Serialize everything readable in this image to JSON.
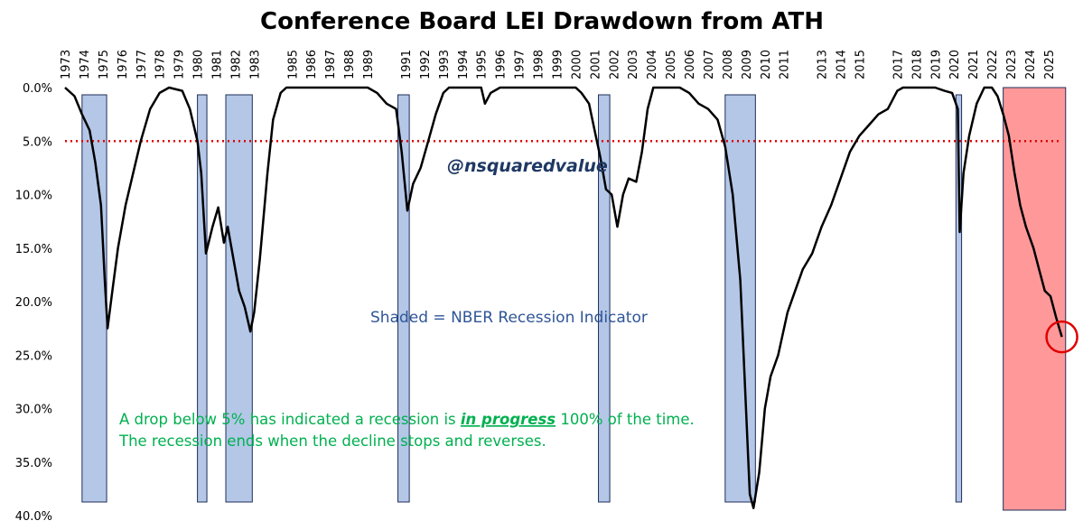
{
  "chart_data": {
    "type": "line",
    "title": "Conference Board LEI Drawdown from ATH",
    "y_inverted": true,
    "xlim": [
      1973,
      2026.15
    ],
    "xticks": [
      1973,
      1974,
      1975,
      1976,
      1977,
      1978,
      1979,
      1980,
      1981,
      1982,
      1983,
      1985,
      1986,
      1987,
      1988,
      1989,
      1991,
      1992,
      1993,
      1994,
      1995,
      1996,
      1997,
      1998,
      1999,
      2000,
      2001,
      2002,
      2003,
      2004,
      2005,
      2006,
      2007,
      2008,
      2009,
      2010,
      2011,
      2013,
      2014,
      2015,
      2017,
      2018,
      2019,
      2020,
      2021,
      2022,
      2023,
      2024,
      2025
    ],
    "ylim": [
      0,
      40
    ],
    "yticks": [
      {
        "value": 0,
        "label": "0.0%"
      },
      {
        "value": 5,
        "label": "5.0%"
      },
      {
        "value": 10,
        "label": "10.0%"
      },
      {
        "value": 15,
        "label": "15.0%"
      },
      {
        "value": 20,
        "label": "20.0%"
      },
      {
        "value": 25,
        "label": "25.0%"
      },
      {
        "value": 30,
        "label": "30.0%"
      },
      {
        "value": 35,
        "label": "35.0%"
      },
      {
        "value": 40,
        "label": "40.0%"
      }
    ],
    "threshold": 5,
    "threshold_color": "#e00000",
    "recessions": [
      [
        1973.9,
        1975.2
      ],
      [
        1980.0,
        1980.5
      ],
      [
        1981.5,
        1982.9
      ],
      [
        1990.6,
        1991.2
      ],
      [
        2001.2,
        2001.8
      ],
      [
        2007.9,
        2009.5
      ],
      [
        2020.1,
        2020.4
      ]
    ],
    "recession_color": "#b4c7e7",
    "highlight": [
      2022.6,
      2025.9
    ],
    "highlight_color": "#ff9999",
    "series": [
      {
        "name": "LEI Drawdown",
        "color": "#000000",
        "x": [
          1973.0,
          1973.5,
          1973.9,
          1974.3,
          1974.6,
          1974.9,
          1975.1,
          1975.25,
          1975.5,
          1975.8,
          1976.2,
          1976.6,
          1977.0,
          1977.5,
          1978.0,
          1978.5,
          1979.2,
          1979.6,
          1980.0,
          1980.2,
          1980.45,
          1980.8,
          1981.1,
          1981.4,
          1981.6,
          1981.9,
          1982.2,
          1982.5,
          1982.8,
          1983.0,
          1983.3,
          1983.7,
          1984.0,
          1984.4,
          1984.7,
          1989.0,
          1989.5,
          1990.0,
          1990.5,
          1990.8,
          1991.1,
          1991.4,
          1991.8,
          1992.2,
          1992.6,
          1993.0,
          1993.3,
          1995.0,
          1995.2,
          1995.5,
          1996.0,
          2000.0,
          2000.3,
          2000.7,
          2001.0,
          2001.3,
          2001.6,
          2001.9,
          2002.2,
          2002.5,
          2002.8,
          2003.2,
          2003.5,
          2003.8,
          2004.1,
          2005.5,
          2006.0,
          2006.5,
          2007.0,
          2007.5,
          2007.9,
          2008.3,
          2008.7,
          2009.0,
          2009.2,
          2009.4,
          2009.7,
          2010.0,
          2010.3,
          2010.7,
          2011.2,
          2011.6,
          2012.0,
          2012.5,
          2013.0,
          2013.5,
          2014.0,
          2014.5,
          2015.0,
          2015.5,
          2016.0,
          2016.5,
          2017.0,
          2017.3,
          2019.0,
          2019.5,
          2019.9,
          2020.2,
          2020.3,
          2020.5,
          2020.8,
          2021.2,
          2021.6,
          2022.0,
          2022.3,
          2022.6,
          2022.9,
          2023.2,
          2023.5,
          2023.8,
          2024.2,
          2024.5,
          2024.8,
          2025.1,
          2025.4,
          2025.7
        ],
        "values": [
          0,
          0.8,
          2.5,
          4,
          7,
          11,
          18,
          22.5,
          19,
          15,
          11,
          8,
          5,
          2,
          0.5,
          0,
          0.3,
          2,
          5,
          8,
          15.5,
          13,
          11.2,
          14.5,
          13,
          16,
          19,
          20.5,
          22.8,
          21,
          16,
          8,
          3,
          0.5,
          0,
          0,
          0.5,
          1.5,
          2,
          6,
          11.5,
          9,
          7.5,
          5,
          2.5,
          0.5,
          0,
          0,
          1.5,
          0.5,
          0,
          0,
          0.5,
          1.5,
          4,
          6.5,
          9.5,
          10,
          13,
          10,
          8.5,
          8.8,
          6,
          2,
          0,
          0,
          0.5,
          1.5,
          2,
          3,
          5.5,
          10,
          18,
          30,
          38,
          39.3,
          36,
          30,
          27,
          25,
          21,
          19,
          17,
          15.5,
          13,
          11,
          8.5,
          6,
          4.5,
          3.5,
          2.5,
          2,
          0.3,
          0,
          0,
          0.3,
          0.5,
          2,
          13.5,
          8,
          4.5,
          1.5,
          0,
          0,
          0.8,
          2.5,
          4.5,
          8,
          11,
          13,
          15,
          17,
          19,
          19.5,
          21.5,
          23.3
        ]
      }
    ],
    "annotations": {
      "handle": "@nsquaredvalue",
      "shading_note": "Shaded = NBER Recession Indicator",
      "note_line1_a": "A drop below 5% has indicated a recession is ",
      "note_line1_b": "in progress",
      "note_line1_c": " 100% of the time.",
      "note_line2": "The recession ends when the decline stops and reverses."
    }
  }
}
